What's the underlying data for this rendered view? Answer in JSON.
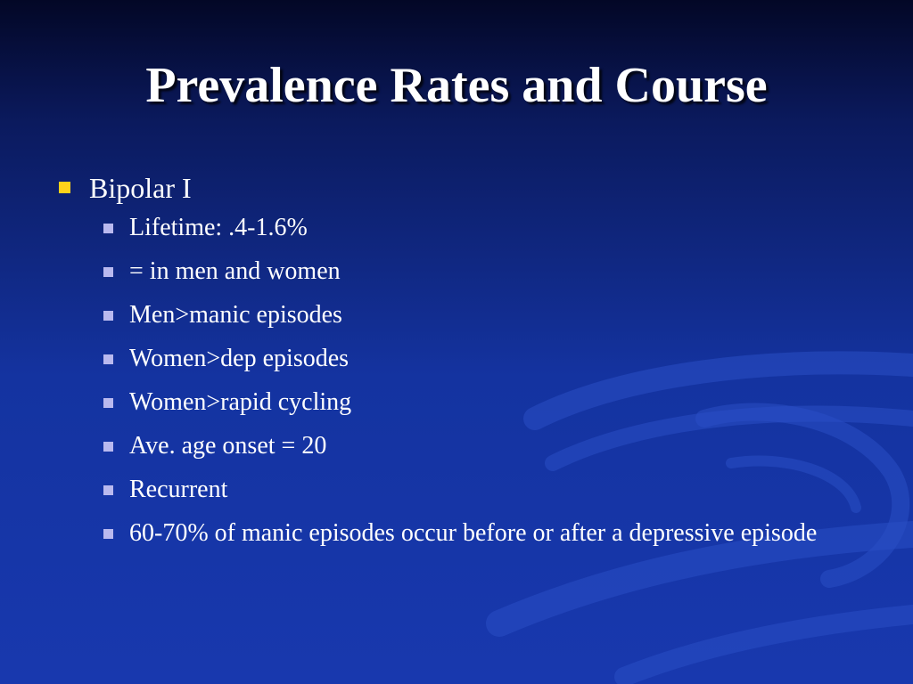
{
  "slide": {
    "title": "Prevalence Rates and Course",
    "main_bullet": "Bipolar I",
    "sub_bullets": [
      "Lifetime:  .4-1.6%",
      "= in men and women",
      "Men>manic episodes",
      "Women>dep episodes",
      "Women>rapid cycling",
      "Ave. age onset = 20",
      "Recurrent",
      "60-70% of manic episodes occur before or after a depressive episode"
    ]
  },
  "colors": {
    "background_top": "#030726",
    "background_bottom": "#1838ae",
    "text": "#ffffff",
    "bullet_level1": "#ffd21a",
    "bullet_level2": "#b9b9ef"
  },
  "icons": {
    "bullet_level1": "square-bullet-icon",
    "bullet_level2": "square-bullet-icon"
  }
}
